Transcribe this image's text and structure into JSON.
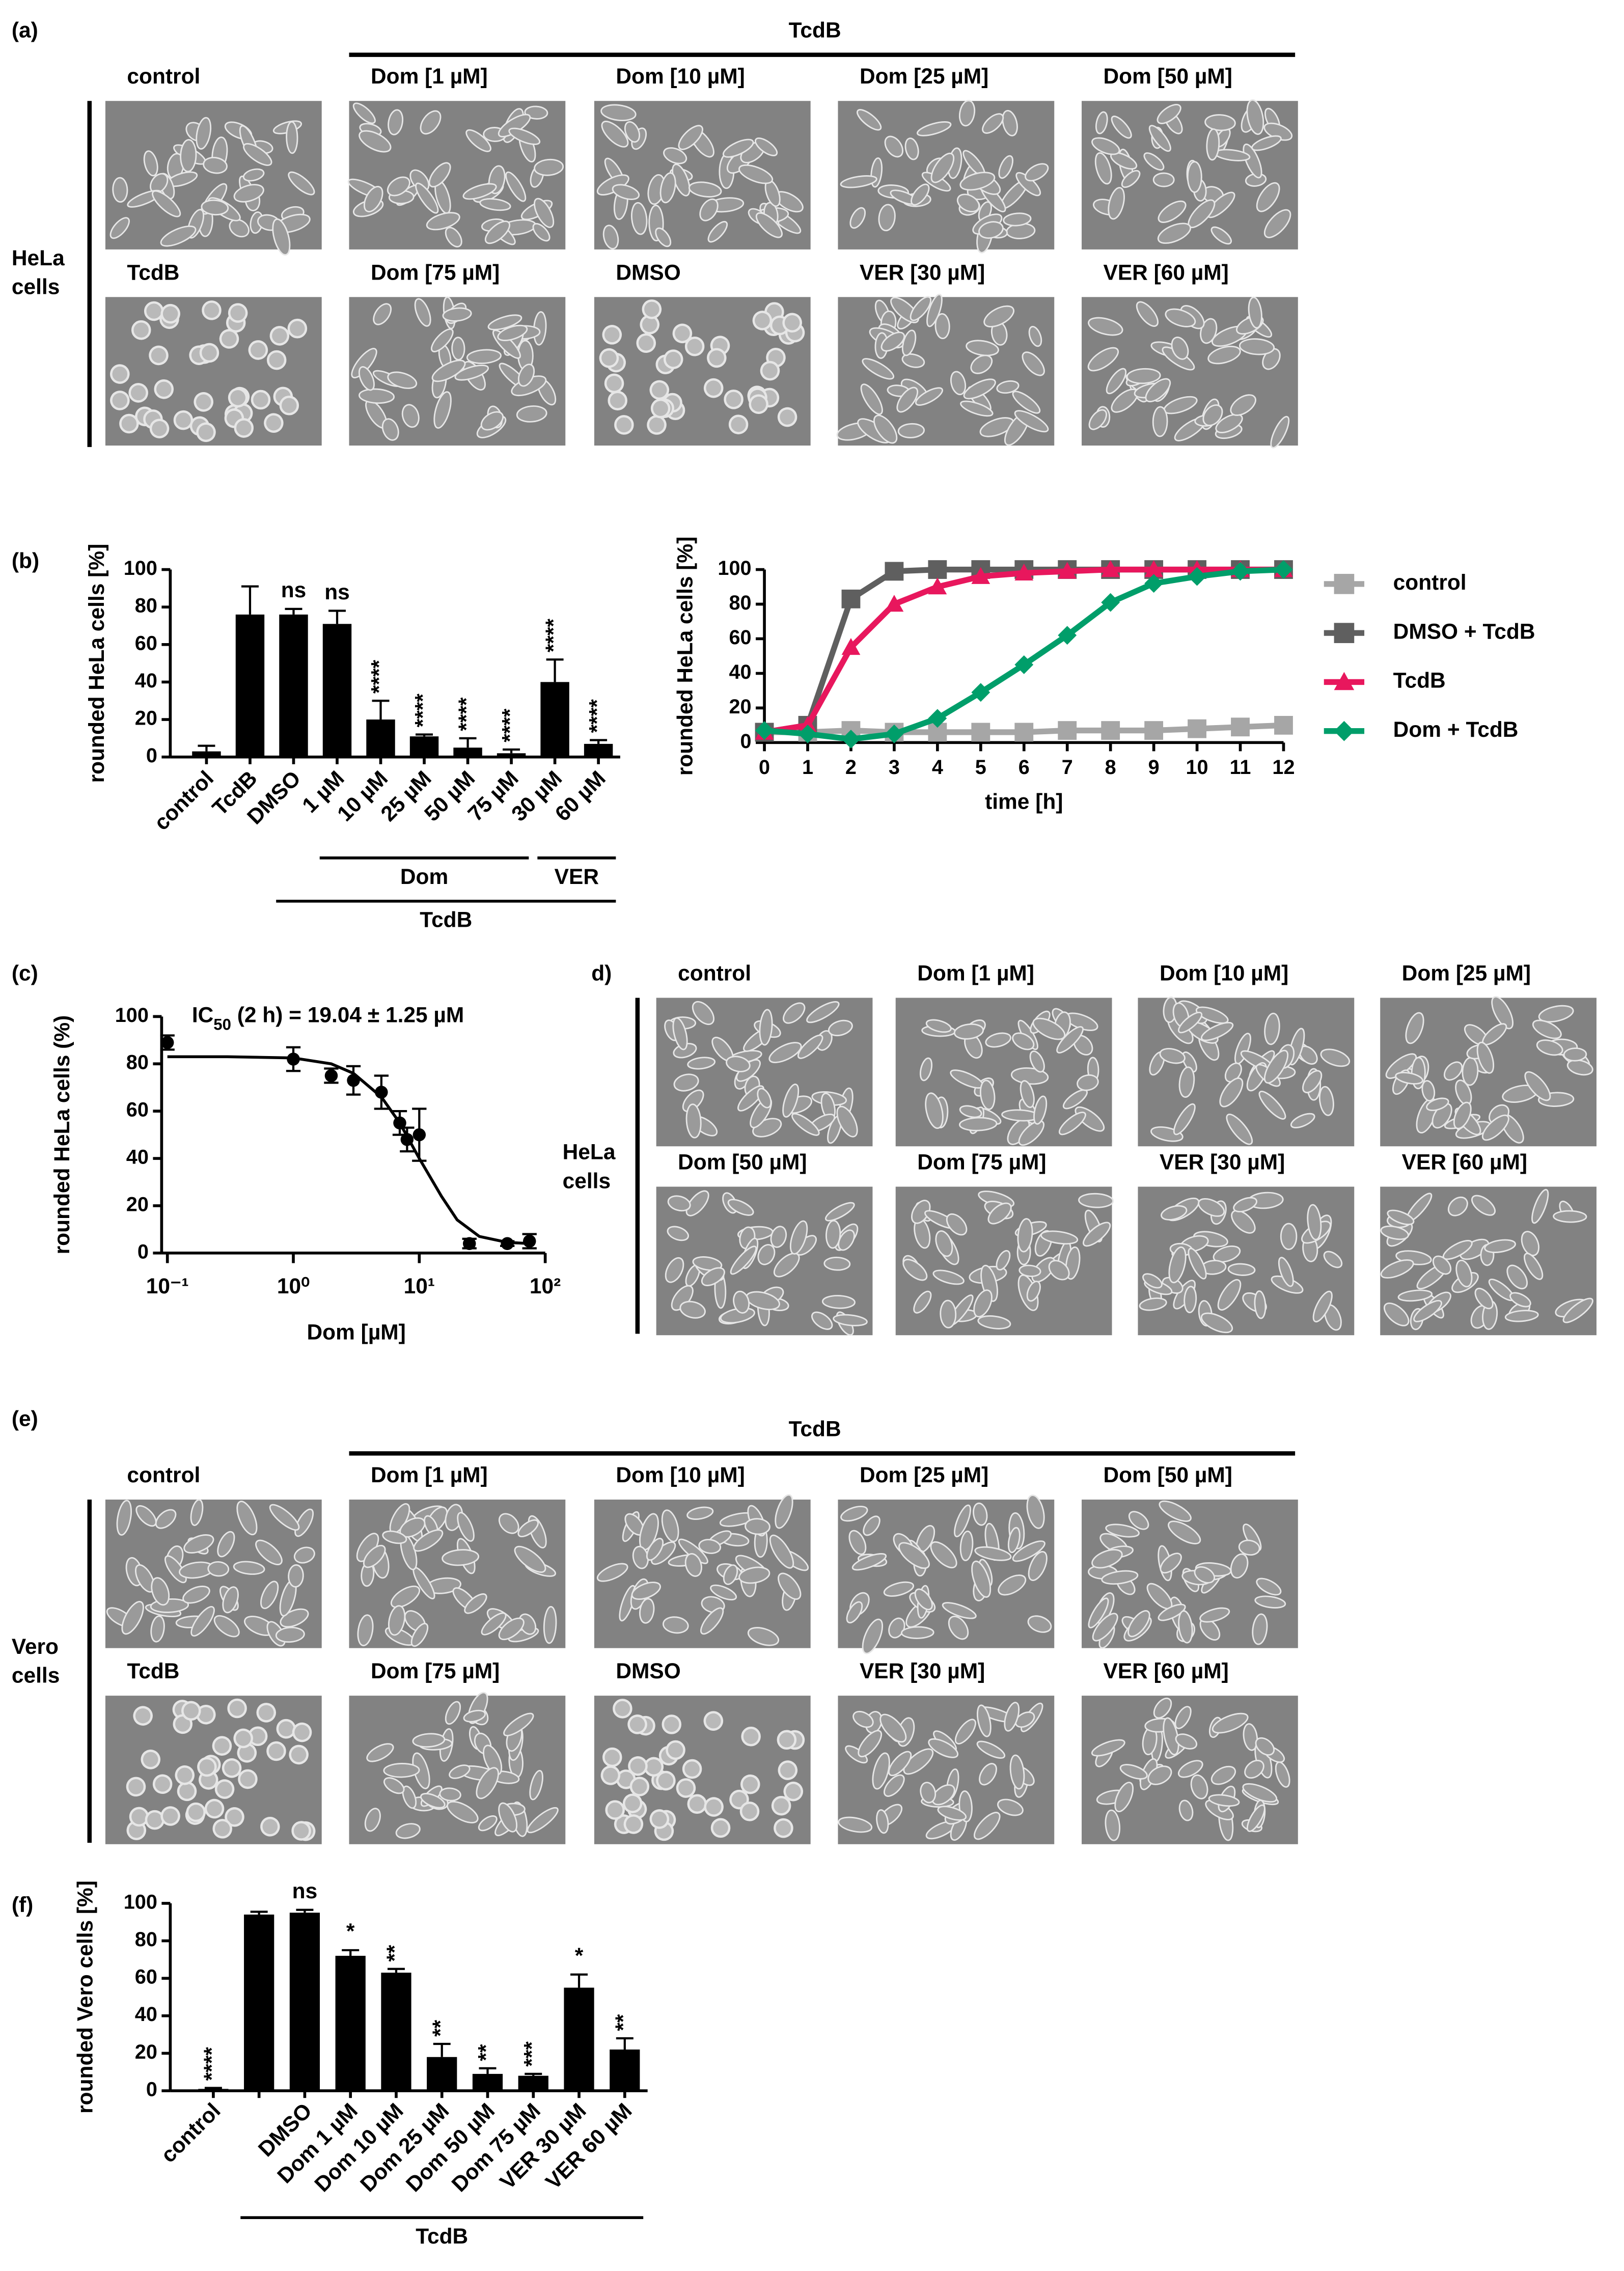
{
  "panels": {
    "a": {
      "label": "(a)",
      "treatment": "TcdB",
      "row_label": [
        "HeLa",
        "cells"
      ],
      "images": [
        "control",
        "Dom [1 µM]",
        "Dom [10 µM]",
        "Dom [25 µM]",
        "Dom [50 µM]",
        "TcdB",
        "Dom [75 µM]",
        "DMSO",
        "VER [30 µM]",
        "VER [60 µM]"
      ]
    },
    "d": {
      "label": "d)",
      "row_label": [
        "HeLa",
        "cells"
      ],
      "images": [
        "control",
        "Dom [1 µM]",
        "Dom [10 µM]",
        "Dom [25 µM]",
        "Dom [50 µM]",
        "Dom [75 µM]",
        "VER [30 µM]",
        "VER [60 µM]"
      ]
    },
    "e": {
      "label": "(e)",
      "treatment": "TcdB",
      "row_label": [
        "Vero",
        "cells"
      ],
      "images": [
        "control",
        "Dom [1 µM]",
        "Dom [10 µM]",
        "Dom [25 µM]",
        "Dom [50 µM]",
        "TcdB",
        "Dom [75 µM]",
        "DMSO",
        "VER [30 µM]",
        "VER [60 µM]"
      ]
    }
  },
  "chart_data": [
    {
      "type": "bar",
      "panel_label": "(b)",
      "ylabel": "rounded HeLa cells [%]",
      "categories": [
        "control",
        "TcdB",
        "DMSO",
        "1 µM",
        "10 µM",
        "25 µM",
        "50 µM",
        "75 µM",
        "30 µM",
        "60 µM"
      ],
      "values": [
        3,
        76,
        76,
        71,
        20,
        11,
        5,
        2,
        40,
        7
      ],
      "errors": [
        3,
        15,
        3,
        7,
        10,
        1,
        5,
        2,
        12,
        2
      ],
      "annotations": [
        null,
        null,
        "ns",
        "ns",
        "****",
        "****",
        "****",
        "****",
        "****",
        "****"
      ],
      "group_labels": [
        "Dom",
        "VER",
        "TcdB"
      ],
      "color": "#000000",
      "ylim": [
        0,
        100
      ],
      "yticks": [
        0,
        20,
        40,
        60,
        80,
        100
      ]
    },
    {
      "type": "line",
      "xlabel": "time [h]",
      "ylabel": "rounded HeLa cells [%]",
      "x": [
        0,
        1,
        2,
        3,
        4,
        5,
        6,
        7,
        8,
        9,
        10,
        11,
        12
      ],
      "series": [
        {
          "name": "control",
          "color": "#a6a6a6",
          "marker": "square",
          "values": [
            6,
            6,
            7,
            6,
            6,
            6,
            6,
            7,
            7,
            7,
            8,
            9,
            10
          ]
        },
        {
          "name": "DMSO + TcdB",
          "color": "#5f5f5f",
          "marker": "square",
          "values": [
            6,
            10,
            83,
            99,
            100,
            100,
            100,
            100,
            100,
            100,
            100,
            100,
            100
          ]
        },
        {
          "name": "TcdB",
          "color": "#e8175d",
          "marker": "triangle",
          "values": [
            6,
            10,
            55,
            80,
            90,
            96,
            98,
            99,
            100,
            100,
            100,
            100,
            100
          ]
        },
        {
          "name": "Dom + TcdB",
          "color": "#009e6a",
          "marker": "diamond",
          "values": [
            7,
            5,
            2,
            5,
            14,
            29,
            45,
            62,
            81,
            92,
            96,
            99,
            100
          ]
        }
      ],
      "legend": "right",
      "xlim": [
        0,
        12
      ],
      "xticks": [
        0,
        1,
        2,
        3,
        4,
        5,
        6,
        7,
        8,
        9,
        10,
        11,
        12
      ],
      "ylim": [
        0,
        100
      ],
      "yticks": [
        0,
        20,
        40,
        60,
        80,
        100
      ]
    },
    {
      "type": "scatter",
      "panel_label": "(c)",
      "title_parts": [
        "IC",
        "50",
        " (2 h) = 19.04 ± 1.25  µM"
      ],
      "xlabel": "Dom [µM]",
      "ylabel": "rounded HeLa cells (%)",
      "x": [
        0.1,
        1,
        2,
        3,
        5,
        7,
        8,
        10,
        25,
        50,
        75
      ],
      "values": [
        89,
        82,
        75,
        73,
        68,
        55,
        48,
        50,
        4,
        4,
        5
      ],
      "errors": [
        3,
        5,
        3,
        6,
        7,
        5,
        5,
        11,
        2,
        1,
        3
      ],
      "fit": {
        "x": [
          0.1,
          0.3,
          1,
          2,
          3,
          5,
          7,
          10,
          15,
          20,
          30,
          50,
          75
        ],
        "values": [
          83,
          83,
          82.5,
          80,
          76,
          66,
          55,
          40,
          24,
          14,
          7,
          4.5,
          4
        ]
      },
      "color": "#000000",
      "log_x": true,
      "xlim": [
        0.1,
        100
      ],
      "xticks": [
        {
          "value": 0.1,
          "label": "10⁻¹"
        },
        {
          "value": 1,
          "label": "10⁰"
        },
        {
          "value": 10,
          "label": "10¹"
        },
        {
          "value": 100,
          "label": "10²"
        }
      ],
      "ylim": [
        0,
        100
      ],
      "yticks": [
        0,
        20,
        40,
        60,
        80,
        100
      ]
    },
    {
      "type": "bar",
      "panel_label": "(f)",
      "ylabel": "rounded Vero cells [%]",
      "categories": [
        "control",
        null,
        "DMSO",
        "Dom 1 µM",
        "Dom 10 µM",
        "Dom 25 µM",
        "Dom 50 µM",
        "Dom 75 µM",
        "VER 30 µM",
        "VER 60 µM"
      ],
      "values": [
        1,
        94,
        95,
        72,
        63,
        18,
        9,
        8,
        55,
        22
      ],
      "errors": [
        0.5,
        1.5,
        1.5,
        3,
        2,
        7,
        3,
        1,
        7,
        6
      ],
      "annotations": [
        "****",
        null,
        "ns",
        "*",
        "**",
        "**",
        "**",
        "***",
        "*",
        "**"
      ],
      "group_labels": [
        "TcdB"
      ],
      "color": "#000000",
      "ylim": [
        0,
        100
      ],
      "yticks": [
        0,
        20,
        40,
        60,
        80,
        100
      ]
    }
  ]
}
